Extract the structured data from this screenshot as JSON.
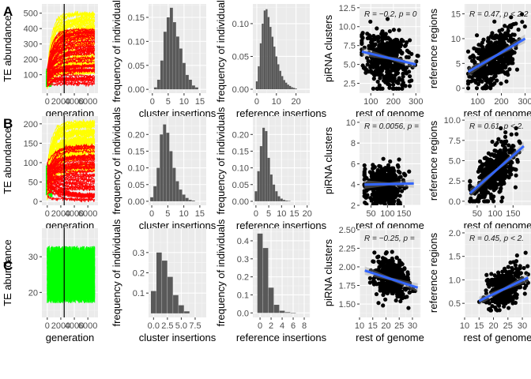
{
  "row_labels": [
    "A",
    "B",
    "C"
  ],
  "chart_data": [
    {
      "id": "A1",
      "type": "line",
      "xlabel": "generation",
      "ylabel": "TE abundance",
      "xlim": [
        -800,
        7500
      ],
      "ylim": [
        -20,
        560
      ],
      "xticks": [
        0,
        2000,
        4000,
        6000
      ],
      "xticklabels": [
        "0",
        "2000",
        "4000",
        "6000"
      ],
      "yticks": [
        100,
        200,
        300,
        400,
        500
      ],
      "yticklabels": [
        "100",
        "200",
        "300",
        "400",
        "500"
      ],
      "vline": 2500,
      "series": [
        {
          "name": "green",
          "color": "#00ff00"
        },
        {
          "name": "yellow",
          "color": "#ffff00"
        },
        {
          "name": "red",
          "color": "#ff0000"
        }
      ],
      "trajectory_envelope": {
        "start": [
          20,
          140
        ],
        "yellow_end": [
          90,
          510
        ],
        "red_end": [
          30,
          400
        ]
      }
    },
    {
      "id": "A2",
      "type": "bar",
      "xlabel": "cluster insertions",
      "ylabel": "frequency of individuals",
      "xlim": [
        -1.2,
        17
      ],
      "ylim": [
        -0.008,
        0.178
      ],
      "xticks": [
        0,
        5,
        10,
        15
      ],
      "xticklabels": [
        "0",
        "5",
        "10",
        "15"
      ],
      "yticks": [
        0,
        0.05,
        0.1,
        0.15
      ],
      "yticklabels": [
        "0.00",
        "0.05",
        "0.10",
        "0.15"
      ],
      "x": [
        1,
        2,
        3,
        4,
        5,
        6,
        7,
        8,
        9,
        10,
        11,
        12,
        13,
        14
      ],
      "values": [
        0.004,
        0.02,
        0.06,
        0.12,
        0.15,
        0.17,
        0.14,
        0.11,
        0.085,
        0.055,
        0.03,
        0.02,
        0.008,
        0.004
      ]
    },
    {
      "id": "A3",
      "type": "bar",
      "xlabel": "reference insertions",
      "ylabel": "frequency of individuals",
      "xlim": [
        -2,
        27
      ],
      "ylim": [
        -0.006,
        0.13
      ],
      "xticks": [
        0,
        10,
        20
      ],
      "xticklabels": [
        "0",
        "10",
        "20"
      ],
      "yticks": [
        0,
        0.05,
        0.1
      ],
      "yticklabels": [
        "0.00",
        "0.05",
        "0.10"
      ],
      "x": [
        0,
        1,
        2,
        3,
        4,
        5,
        6,
        7,
        8,
        9,
        10,
        11,
        12,
        13,
        14,
        15,
        16,
        17,
        18,
        19,
        20
      ],
      "values": [
        0.012,
        0.035,
        0.07,
        0.1,
        0.12,
        0.122,
        0.11,
        0.095,
        0.08,
        0.065,
        0.05,
        0.038,
        0.028,
        0.02,
        0.014,
        0.01,
        0.007,
        0.005,
        0.003,
        0.002,
        0.001
      ]
    },
    {
      "id": "A4",
      "type": "scatter",
      "xlabel": "rest of genome",
      "ylabel": "piRNA clusters",
      "xlim": [
        50,
        320
      ],
      "ylim": [
        1.2,
        13
      ],
      "xticks": [
        100,
        200,
        300
      ],
      "xticklabels": [
        "100",
        "200",
        "300"
      ],
      "yticks": [
        2.5,
        5,
        7.5,
        10,
        12.5
      ],
      "yticklabels": [
        "2.5",
        "5.0",
        "7.5",
        "10.0",
        "12.5"
      ],
      "annotation": "R = −0.2, p = 0",
      "points": {
        "n": 480,
        "xmean": 165,
        "xsd": 50,
        "ymean": 5.9,
        "ysd": 1.8,
        "r": -0.2,
        "xclip": [
          60,
          310
        ],
        "yclip": [
          1.8,
          12.5
        ]
      },
      "fit": {
        "x": [
          60,
          300
        ],
        "y": [
          6.7,
          5.0
        ]
      }
    },
    {
      "id": "A5",
      "type": "scatter",
      "xlabel": "rest of genome",
      "ylabel": "reference regions",
      "xlim": [
        45,
        325
      ],
      "ylim": [
        -1,
        17
      ],
      "xticks": [
        100,
        200,
        300
      ],
      "xticklabels": [
        "100",
        "200",
        "300"
      ],
      "yticks": [
        0,
        5,
        10,
        15
      ],
      "yticklabels": [
        "0",
        "5",
        "10",
        "15"
      ],
      "annotation": "R = 0.47, p < 2.2",
      "points": {
        "n": 480,
        "xmean": 170,
        "xsd": 50,
        "ymean": 6,
        "ysd": 3,
        "r": 0.47,
        "xclip": [
          60,
          310
        ],
        "yclip": [
          0,
          16
        ]
      },
      "fit": {
        "x": [
          60,
          300
        ],
        "y": [
          3.3,
          10.0
        ]
      }
    },
    {
      "id": "B1",
      "type": "line",
      "xlabel": "generation",
      "ylabel": "TE abundance",
      "xlim": [
        -800,
        7500
      ],
      "ylim": [
        -10,
        220
      ],
      "xticks": [
        0,
        2000,
        4000,
        6000
      ],
      "xticklabels": [
        "0",
        "2000",
        "4000",
        "6000"
      ],
      "yticks": [
        0,
        50,
        100,
        150,
        200
      ],
      "yticklabels": [
        "0",
        "50",
        "100",
        "150",
        "200"
      ],
      "vline": 2500,
      "series": [
        {
          "name": "green",
          "color": "#00ff00"
        },
        {
          "name": "yellow",
          "color": "#ffff00"
        },
        {
          "name": "red",
          "color": "#ff0000"
        }
      ],
      "trajectory_envelope": {
        "start": [
          10,
          100
        ],
        "yellow_end": [
          80,
          205
        ],
        "red_end": [
          0,
          150
        ]
      }
    },
    {
      "id": "B2",
      "type": "bar",
      "xlabel": "cluster insertions",
      "ylabel": "frequency of individuals",
      "xlim": [
        -1,
        17
      ],
      "ylim": [
        -0.012,
        0.255
      ],
      "xticks": [
        0,
        5,
        10,
        15
      ],
      "xticklabels": [
        "0",
        "5",
        "10",
        "15"
      ],
      "yticks": [
        0,
        0.05,
        0.1,
        0.15,
        0.2
      ],
      "yticklabels": [
        "0.00",
        "0.05",
        "0.10",
        "0.15",
        "0.20"
      ],
      "x": [
        0,
        1,
        2,
        3,
        4,
        5,
        6,
        7,
        8,
        9,
        10,
        11,
        12,
        13
      ],
      "values": [
        0.012,
        0.045,
        0.1,
        0.2,
        0.23,
        0.205,
        0.15,
        0.1,
        0.06,
        0.035,
        0.02,
        0.01,
        0.004,
        0.002
      ]
    },
    {
      "id": "B3",
      "type": "bar",
      "xlabel": "reference insertions",
      "ylabel": "frequency of individuals",
      "xlim": [
        -1.2,
        21
      ],
      "ylim": [
        -0.012,
        0.255
      ],
      "xticks": [
        0,
        5,
        10,
        15,
        20
      ],
      "xticklabels": [
        "0",
        "5",
        "10",
        "15",
        "20"
      ],
      "yticks": [
        0,
        0.05,
        0.1,
        0.15,
        0.2
      ],
      "yticklabels": [
        "0.00",
        "0.05",
        "0.10",
        "0.15",
        "0.20"
      ],
      "x": [
        0,
        1,
        2,
        3,
        4,
        5,
        6,
        7,
        8,
        9,
        10,
        11,
        12,
        13
      ],
      "values": [
        0.03,
        0.09,
        0.165,
        0.22,
        0.21,
        0.13,
        0.08,
        0.05,
        0.03,
        0.015,
        0.008,
        0.004,
        0.002,
        0.001
      ]
    },
    {
      "id": "B4",
      "type": "scatter",
      "xlabel": "rest of genome",
      "ylabel": "piRNA clusters",
      "xlim": [
        15,
        200
      ],
      "ylim": [
        2,
        10.6
      ],
      "xticks": [
        50,
        100,
        150
      ],
      "xticklabels": [
        "50",
        "100",
        "150"
      ],
      "yticks": [
        2,
        4,
        6,
        8,
        10
      ],
      "yticklabels": [
        "2",
        "4",
        "6",
        "8",
        "10"
      ],
      "annotation": "R = 0.0056, p = ",
      "points": {
        "n": 480,
        "xmean": 90,
        "xsd": 28,
        "ymean": 4.0,
        "ysd": 0.9,
        "r": 0.0056,
        "xclip": [
          30,
          180
        ],
        "yclip": [
          2.1,
          7.2
        ]
      },
      "fit": {
        "x": [
          30,
          180
        ],
        "y": [
          4.0,
          4.1
        ]
      }
    },
    {
      "id": "B5",
      "type": "scatter",
      "xlabel": "rest of genome",
      "ylabel": "reference regions",
      "xlim": [
        15,
        200
      ],
      "ylim": [
        -0.5,
        10.5
      ],
      "xticks": [
        50,
        100,
        150
      ],
      "xticklabels": [
        "50",
        "100",
        "150"
      ],
      "yticks": [
        0,
        2.5,
        5,
        7.5,
        10
      ],
      "yticklabels": [
        "0.0",
        "2.5",
        "5.0",
        "7.5",
        "10.0"
      ],
      "annotation": "R = 0.61, p < 2.",
      "points": {
        "n": 480,
        "xmean": 95,
        "xsd": 30,
        "ymean": 3.3,
        "ysd": 1.9,
        "r": 0.61,
        "xclip": [
          30,
          180
        ],
        "yclip": [
          0,
          9
        ]
      },
      "fit": {
        "x": [
          30,
          180
        ],
        "y": [
          1.0,
          6.8
        ]
      }
    },
    {
      "id": "C1",
      "type": "line",
      "xlabel": "generation",
      "ylabel": "TE abundance",
      "xlim": [
        -800,
        7500
      ],
      "ylim": [
        13,
        38
      ],
      "xticks": [
        0,
        2000,
        4000,
        6000
      ],
      "xticklabels": [
        "0",
        "2000",
        "4000",
        "6000"
      ],
      "yticks": [
        20,
        30
      ],
      "yticklabels": [
        "20",
        "30"
      ],
      "vline": 2500,
      "series": [
        {
          "name": "green",
          "color": "#00ff00"
        }
      ],
      "trajectory_envelope": {
        "start": [
          20,
          33
        ],
        "band": [
          17,
          33
        ]
      }
    },
    {
      "id": "C2",
      "type": "bar",
      "xlabel": "cluster insertions",
      "ylabel": "frequency of individuals",
      "xlim": [
        -0.9,
        9.5
      ],
      "ylim": [
        -0.02,
        0.42
      ],
      "xticks": [
        0,
        2.5,
        5,
        7.5
      ],
      "xticklabels": [
        "0.0",
        "2.5",
        "5.0",
        "7.5"
      ],
      "yticks": [
        0.1,
        0.2,
        0.3
      ],
      "yticklabels": [
        "0.1",
        "0.2",
        "0.3"
      ],
      "x": [
        0,
        1,
        2,
        3,
        4,
        5,
        6
      ],
      "values": [
        0.11,
        0.3,
        0.26,
        0.18,
        0.09,
        0.04,
        0.01
      ]
    },
    {
      "id": "C3",
      "type": "bar",
      "xlabel": "reference insertions",
      "ylabel": "frequency of individuals",
      "xlim": [
        -1.3,
        9
      ],
      "ylim": [
        -0.025,
        0.47
      ],
      "xticks": [
        0,
        2,
        4,
        6,
        8
      ],
      "xticklabels": [
        "0",
        "2",
        "4",
        "6",
        "8"
      ],
      "yticks": [
        0,
        0.1,
        0.2,
        0.3,
        0.4
      ],
      "yticklabels": [
        "0.0",
        "0.1",
        "0.2",
        "0.3",
        "0.4"
      ],
      "x": [
        0,
        1,
        2,
        3,
        4,
        5,
        6
      ],
      "values": [
        0.44,
        0.36,
        0.14,
        0.045,
        0.012,
        0.004,
        0.001
      ]
    },
    {
      "id": "C4",
      "type": "scatter",
      "xlabel": "rest of genome",
      "ylabel": "piRNA clusters",
      "xlim": [
        10,
        33
      ],
      "ylim": [
        1.32,
        2.52
      ],
      "xticks": [
        10,
        15,
        20,
        25,
        30
      ],
      "xticklabels": [
        "10",
        "15",
        "20",
        "25",
        "30"
      ],
      "yticks": [
        1.5,
        1.75,
        2.0,
        2.25,
        2.5
      ],
      "yticklabels": [
        "1.50",
        "1.75",
        "2.00",
        "2.25",
        "2.50"
      ],
      "annotation": "R = −0.25, p = ",
      "points": {
        "n": 400,
        "xmean": 22,
        "xsd": 3.2,
        "ymean": 1.85,
        "ysd": 0.14,
        "r": -0.25,
        "xclip": [
          14,
          31
        ],
        "yclip": [
          1.4,
          2.4
        ]
      },
      "fit": {
        "x": [
          12,
          32
        ],
        "y": [
          1.95,
          1.72
        ]
      }
    },
    {
      "id": "C5",
      "type": "scatter",
      "xlabel": "rest of genome",
      "ylabel": "reference regions",
      "xlim": [
        10,
        33
      ],
      "ylim": [
        0.2,
        2.1
      ],
      "xticks": [
        10,
        15,
        20,
        25,
        30
      ],
      "xticklabels": [
        "10",
        "15",
        "20",
        "25",
        "30"
      ],
      "yticks": [
        0.5,
        1.0,
        1.5,
        2.0
      ],
      "yticklabels": [
        "0.5",
        "1.0",
        "1.5",
        "2.0"
      ],
      "annotation": "R = 0.45, p < 2.",
      "points": {
        "n": 400,
        "xmean": 24,
        "xsd": 3.2,
        "ymean": 0.85,
        "ysd": 0.22,
        "r": 0.45,
        "xclip": [
          14,
          32
        ],
        "yclip": [
          0.35,
          1.6
        ]
      },
      "fit": {
        "x": [
          15,
          32
        ],
        "y": [
          0.55,
          1.05
        ]
      }
    }
  ]
}
